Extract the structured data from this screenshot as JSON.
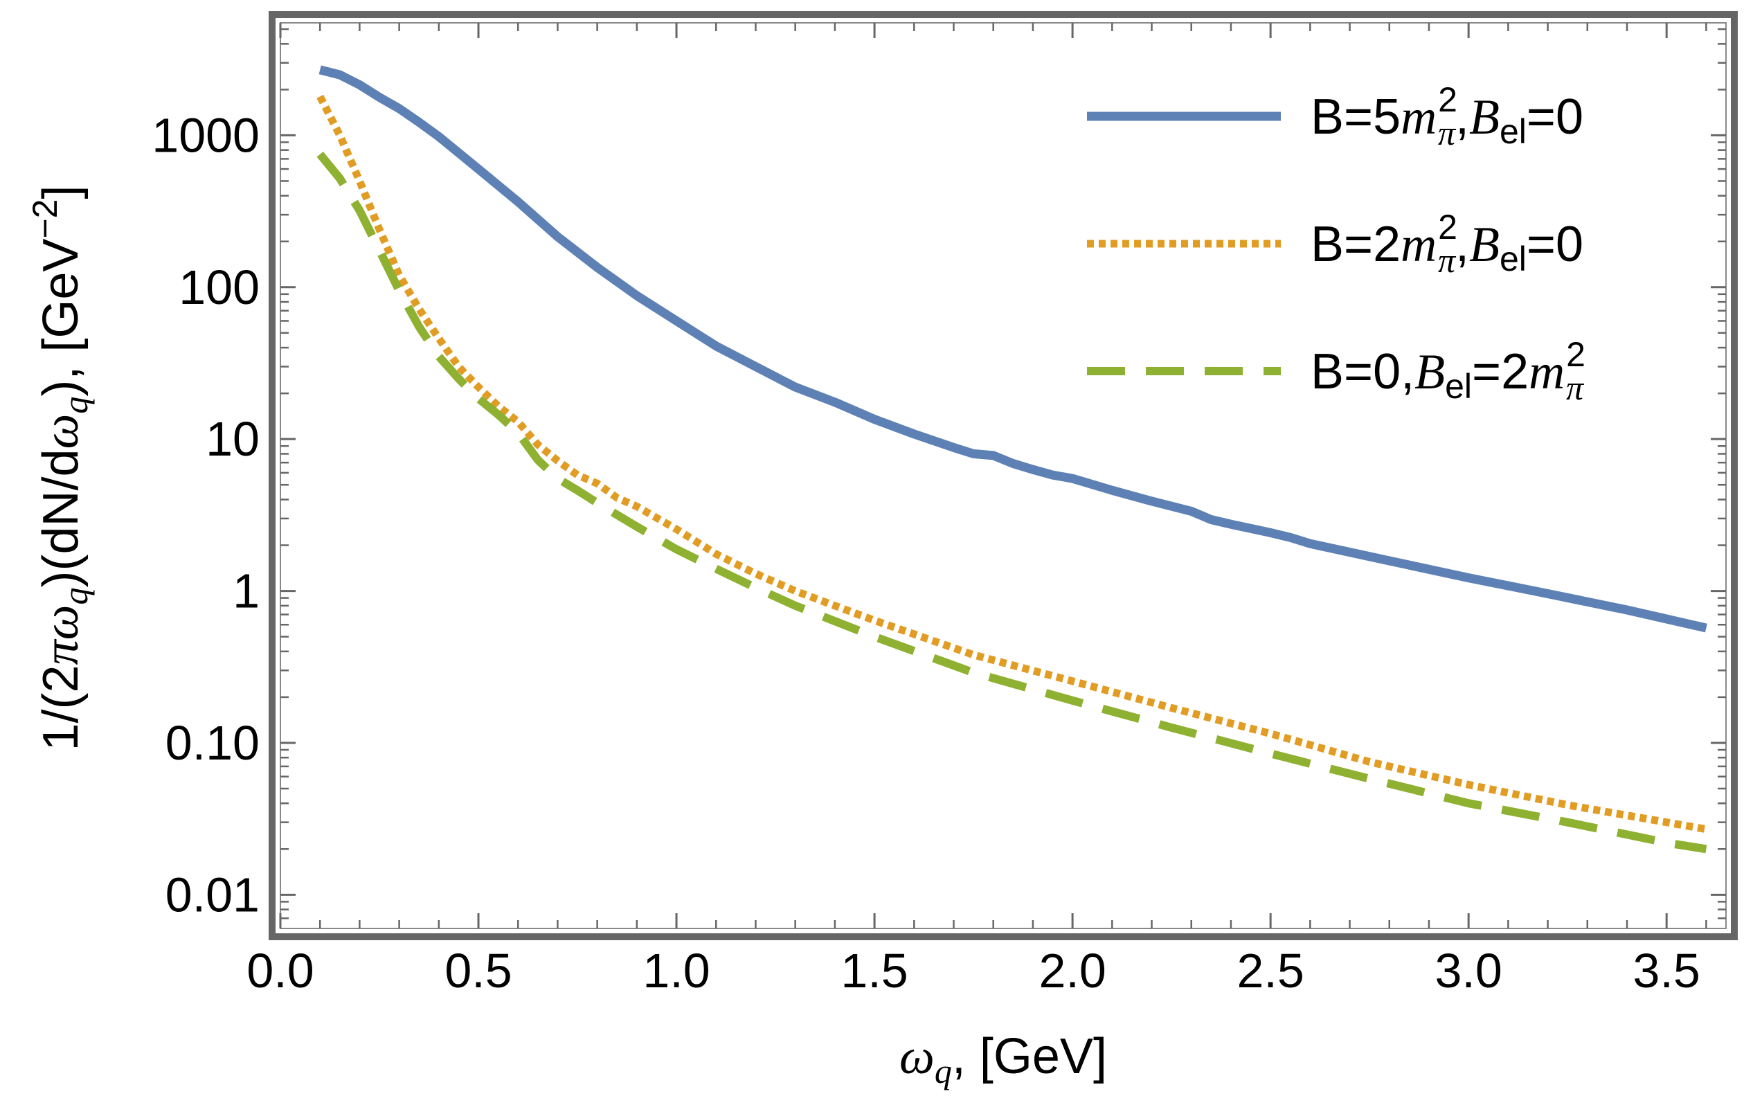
{
  "chart_data": {
    "type": "line",
    "title": "",
    "xlabel": "ω_q, [GeV]",
    "ylabel": "1/(2πω_q)(dN/dω_q), [GeV^-2]",
    "xlim": [
      0.0,
      3.65
    ],
    "ylim": [
      0.006,
      5500
    ],
    "yscale": "log",
    "x_ticks": [
      0.0,
      0.5,
      1.0,
      1.5,
      2.0,
      2.5,
      3.0,
      3.5
    ],
    "x_tick_labels": [
      "0.0",
      "0.5",
      "1.0",
      "1.5",
      "2.0",
      "2.5",
      "3.0",
      "3.5"
    ],
    "y_ticks": [
      0.01,
      0.1,
      1,
      10,
      100,
      1000
    ],
    "y_tick_labels": [
      "0.01",
      "0.10",
      "1",
      "10",
      "100",
      "1000"
    ],
    "grid": false,
    "legend_position": "top-right",
    "series": [
      {
        "name": "B=5m_π²,B_el=0",
        "legend": {
          "pre": "B=5",
          "m": "m",
          "sub": "π",
          "sup": "2",
          "mid": ",",
          "B": "B",
          "Bsub": "el",
          "post": "=0"
        },
        "color": "#5E81B5",
        "style": "solid",
        "x": [
          0.1,
          0.15,
          0.2,
          0.25,
          0.3,
          0.35,
          0.4,
          0.5,
          0.6,
          0.7,
          0.8,
          0.9,
          1.0,
          1.1,
          1.2,
          1.3,
          1.4,
          1.5,
          1.6,
          1.7,
          1.75,
          1.8,
          1.85,
          1.9,
          1.95,
          2.0,
          2.1,
          2.2,
          2.3,
          2.35,
          2.4,
          2.5,
          2.55,
          2.6,
          2.8,
          3.0,
          3.2,
          3.4,
          3.6
        ],
        "y": [
          2700,
          2500,
          2150,
          1780,
          1500,
          1220,
          980,
          600,
          365,
          215,
          135,
          88,
          60,
          41,
          30,
          22,
          17.5,
          13.5,
          10.8,
          8.8,
          8.0,
          7.8,
          6.9,
          6.3,
          5.8,
          5.5,
          4.6,
          3.9,
          3.35,
          2.95,
          2.75,
          2.42,
          2.25,
          2.05,
          1.58,
          1.22,
          0.96,
          0.75,
          0.57
        ]
      },
      {
        "name": "B=2m_π²,B_el=0",
        "legend": {
          "pre": "B=2",
          "m": "m",
          "sub": "π",
          "sup": "2",
          "mid": ",",
          "B": "B",
          "Bsub": "el",
          "post": "=0"
        },
        "color": "#E19C24",
        "style": "dotted",
        "x": [
          0.1,
          0.15,
          0.2,
          0.25,
          0.3,
          0.35,
          0.4,
          0.45,
          0.5,
          0.55,
          0.6,
          0.65,
          0.7,
          0.75,
          0.8,
          0.85,
          0.9,
          1.0,
          1.1,
          1.2,
          1.3,
          1.5,
          1.75,
          2.0,
          2.25,
          2.5,
          2.75,
          3.0,
          3.25,
          3.5,
          3.6
        ],
        "y": [
          1800,
          1000,
          500,
          240,
          120,
          72,
          46,
          30,
          22,
          16.5,
          13,
          9.2,
          7.2,
          5.8,
          5.1,
          4.1,
          3.6,
          2.55,
          1.75,
          1.3,
          1.0,
          0.64,
          0.38,
          0.255,
          0.17,
          0.115,
          0.075,
          0.053,
          0.039,
          0.03,
          0.027
        ]
      },
      {
        "name": "B=0,B_el=2m_π²",
        "legend": {
          "pre": "B=0,",
          "B": "B",
          "Bsub": "el",
          "eq": "=2",
          "m": "m",
          "sub": "π",
          "sup": "2"
        },
        "color": "#8FB131",
        "style": "dashed",
        "x": [
          0.1,
          0.15,
          0.2,
          0.25,
          0.3,
          0.35,
          0.4,
          0.45,
          0.5,
          0.55,
          0.6,
          0.65,
          0.7,
          0.75,
          0.8,
          0.9,
          1.0,
          1.1,
          1.2,
          1.3,
          1.5,
          1.75,
          2.0,
          2.25,
          2.5,
          2.75,
          3.0,
          3.25,
          3.5,
          3.6
        ],
        "y": [
          750,
          520,
          320,
          175,
          95,
          55,
          35,
          25,
          18.5,
          14.5,
          11,
          7.3,
          5.5,
          4.6,
          3.8,
          2.65,
          1.88,
          1.4,
          1.05,
          0.8,
          0.5,
          0.29,
          0.19,
          0.126,
          0.085,
          0.058,
          0.04,
          0.03,
          0.022,
          0.02
        ]
      }
    ]
  }
}
